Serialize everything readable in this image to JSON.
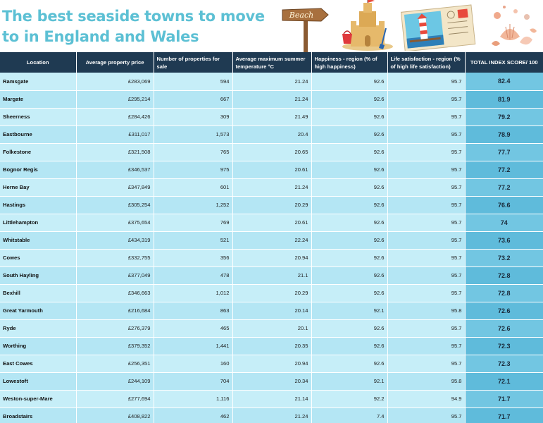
{
  "title": "The best seaside towns to move to in England and Wales",
  "sign_text": "Beach",
  "columns": [
    "Location",
    "Average property price",
    "Number of properties for sale",
    "Average maximum summer temperature °C",
    "Happiness - region (% of high happiness)",
    "Life satisfaction - region (% of high life satisfaction)",
    "TOTAL INDEX SCORE/ 100"
  ],
  "rows": [
    {
      "location": "Ramsgate",
      "price": "£283,069",
      "properties": "594",
      "temp": "21.24",
      "happiness": "92.6",
      "life": "95.7",
      "score": "82.4"
    },
    {
      "location": "Margate",
      "price": "£295,214",
      "properties": "667",
      "temp": "21.24",
      "happiness": "92.6",
      "life": "95.7",
      "score": "81.9"
    },
    {
      "location": "Sheerness",
      "price": "£284,426",
      "properties": "309",
      "temp": "21.49",
      "happiness": "92.6",
      "life": "95.7",
      "score": "79.2"
    },
    {
      "location": "Eastbourne",
      "price": "£311,017",
      "properties": "1,573",
      "temp": "20.4",
      "happiness": "92.6",
      "life": "95.7",
      "score": "78.9"
    },
    {
      "location": "Folkestone",
      "price": "£321,508",
      "properties": "765",
      "temp": "20.65",
      "happiness": "92.6",
      "life": "95.7",
      "score": "77.7"
    },
    {
      "location": "Bognor Regis",
      "price": "£346,537",
      "properties": "975",
      "temp": "20.61",
      "happiness": "92.6",
      "life": "95.7",
      "score": "77.2"
    },
    {
      "location": "Herne Bay",
      "price": "£347,849",
      "properties": "601",
      "temp": "21.24",
      "happiness": "92.6",
      "life": "95.7",
      "score": "77.2"
    },
    {
      "location": "Hastings",
      "price": "£305,254",
      "properties": "1,252",
      "temp": "20.29",
      "happiness": "92.6",
      "life": "95.7",
      "score": "76.6"
    },
    {
      "location": "Littlehampton",
      "price": "£375,654",
      "properties": "769",
      "temp": "20.61",
      "happiness": "92.6",
      "life": "95.7",
      "score": "74"
    },
    {
      "location": "Whitstable",
      "price": "£434,319",
      "properties": "521",
      "temp": "22.24",
      "happiness": "92.6",
      "life": "95.7",
      "score": "73.6"
    },
    {
      "location": "Cowes",
      "price": "£332,755",
      "properties": "356",
      "temp": "20.94",
      "happiness": "92.6",
      "life": "95.7",
      "score": "73.2"
    },
    {
      "location": "South Hayling",
      "price": "£377,049",
      "properties": "478",
      "temp": "21.1",
      "happiness": "92.6",
      "life": "95.7",
      "score": "72.8"
    },
    {
      "location": "Bexhill",
      "price": "£346,663",
      "properties": "1,012",
      "temp": "20.29",
      "happiness": "92.6",
      "life": "95.7",
      "score": "72.8"
    },
    {
      "location": "Great Yarmouth",
      "price": "£216,684",
      "properties": "863",
      "temp": "20.14",
      "happiness": "92.1",
      "life": "95.8",
      "score": "72.6"
    },
    {
      "location": "Ryde",
      "price": "£276,379",
      "properties": "465",
      "temp": "20.1",
      "happiness": "92.6",
      "life": "95.7",
      "score": "72.6"
    },
    {
      "location": "Worthing",
      "price": "£379,352",
      "properties": "1,441",
      "temp": "20.35",
      "happiness": "92.6",
      "life": "95.7",
      "score": "72.3"
    },
    {
      "location": "East Cowes",
      "price": "£256,351",
      "properties": "160",
      "temp": "20.94",
      "happiness": "92.6",
      "life": "95.7",
      "score": "72.3"
    },
    {
      "location": "Lowestoft",
      "price": "£244,109",
      "properties": "704",
      "temp": "20.34",
      "happiness": "92.1",
      "life": "95.8",
      "score": "72.1"
    },
    {
      "location": "Weston-super-Mare",
      "price": "£277,694",
      "properties": "1,116",
      "temp": "21.14",
      "happiness": "92.2",
      "life": "94.9",
      "score": "71.7"
    },
    {
      "location": "Broadstairs",
      "price": "£408,822",
      "properties": "462",
      "temp": "21.24",
      "happiness": "7.4",
      "life": "95.7",
      "score": "71.7"
    }
  ],
  "colors": {
    "title": "#5cc0d4",
    "header_bg": "#1f3a52",
    "row_light": "#c6eef8",
    "row_dark": "#b4e6f4",
    "score_bg": "#72c6e2"
  },
  "icons": [
    "beach-signpost-icon",
    "sandcastle-icon",
    "lighthouse-postcard-icon",
    "seashells-icon"
  ]
}
